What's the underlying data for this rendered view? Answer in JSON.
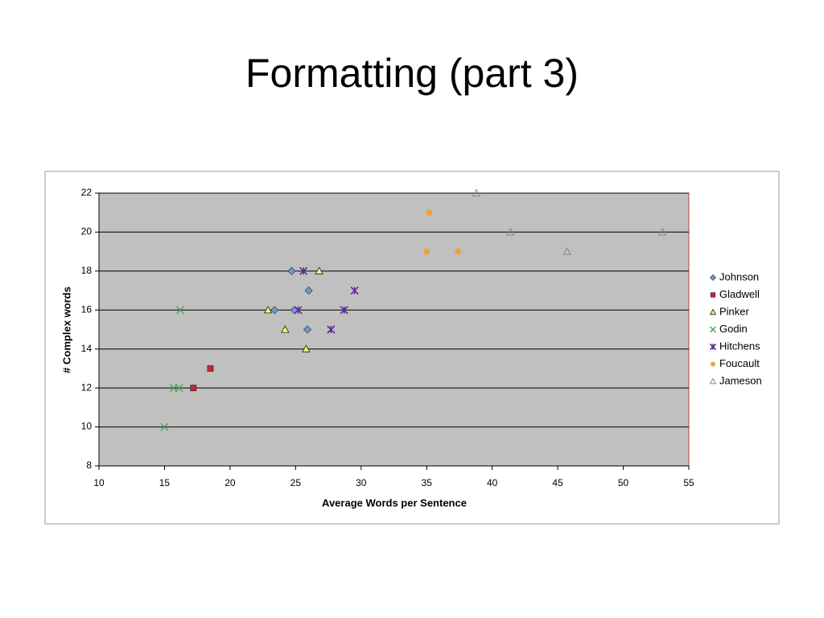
{
  "slide_title": "Formatting (part 3)",
  "chart_data": {
    "type": "scatter",
    "xlabel": "Average Words per Sentence",
    "ylabel": "# Complex words",
    "xlim": [
      10,
      55
    ],
    "xticks": [
      10,
      15,
      20,
      25,
      30,
      35,
      40,
      45,
      50,
      55
    ],
    "ylim": [
      8,
      22
    ],
    "yticks": [
      8,
      10,
      12,
      14,
      16,
      18,
      20,
      22
    ],
    "grid": true,
    "legend": "right",
    "series": [
      {
        "name": "Johnson",
        "color": "#6a9bd8",
        "marker": "diamond",
        "x": [
          24.7,
          26,
          23.4,
          24.9,
          25.9
        ],
        "values": [
          18,
          17,
          16,
          16,
          15
        ]
      },
      {
        "name": "Gladwell",
        "color": "#c0283a",
        "marker": "square",
        "x": [
          18.5,
          17.2
        ],
        "values": [
          13,
          12
        ]
      },
      {
        "name": "Pinker",
        "color": "#f4f070",
        "marker": "triangle",
        "x": [
          26.8,
          22.9,
          24.2,
          25.8
        ],
        "values": [
          18,
          16,
          15,
          14
        ]
      },
      {
        "name": "Godin",
        "color": "#4aa45a",
        "marker": "x",
        "x": [
          16.2,
          15,
          15.7,
          16.1
        ],
        "values": [
          16,
          10,
          12,
          12
        ]
      },
      {
        "name": "Hitchens",
        "color": "#5a2c9c",
        "marker": "star",
        "x": [
          25.6,
          29.5,
          25.2,
          28.7,
          27.7
        ],
        "values": [
          18,
          17,
          16,
          16,
          15
        ]
      },
      {
        "name": "Foucault",
        "color": "#f0a040",
        "marker": "circle",
        "x": [
          35.2,
          35,
          37.4
        ],
        "values": [
          21,
          19,
          19
        ]
      },
      {
        "name": "Jameson",
        "color": "#888888",
        "marker": "open-triangle",
        "x": [
          38.8,
          41.4,
          45.7,
          53
        ],
        "values": [
          22,
          20,
          19,
          20
        ]
      }
    ]
  }
}
